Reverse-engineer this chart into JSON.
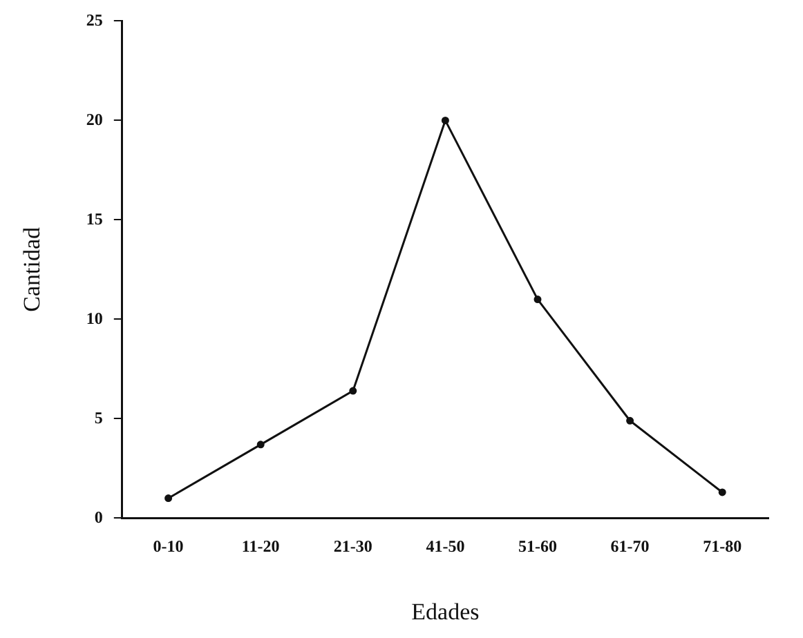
{
  "chart_data": {
    "type": "line",
    "xlabel": "Edades",
    "ylabel": "Cantidad",
    "categories": [
      "0-10",
      "11-20",
      "21-30",
      "41-50",
      "51-60",
      "61-70",
      "71-80"
    ],
    "series": [
      {
        "color": "#111111",
        "values": [
          1,
          3.7,
          6.4,
          20,
          11,
          4.9,
          1.3
        ]
      }
    ],
    "ylim": [
      0,
      25
    ],
    "yticks": [
      0,
      5,
      10,
      15,
      20,
      25
    ],
    "grid": false,
    "legend": false,
    "marker": "circle",
    "line_style": "solid"
  }
}
